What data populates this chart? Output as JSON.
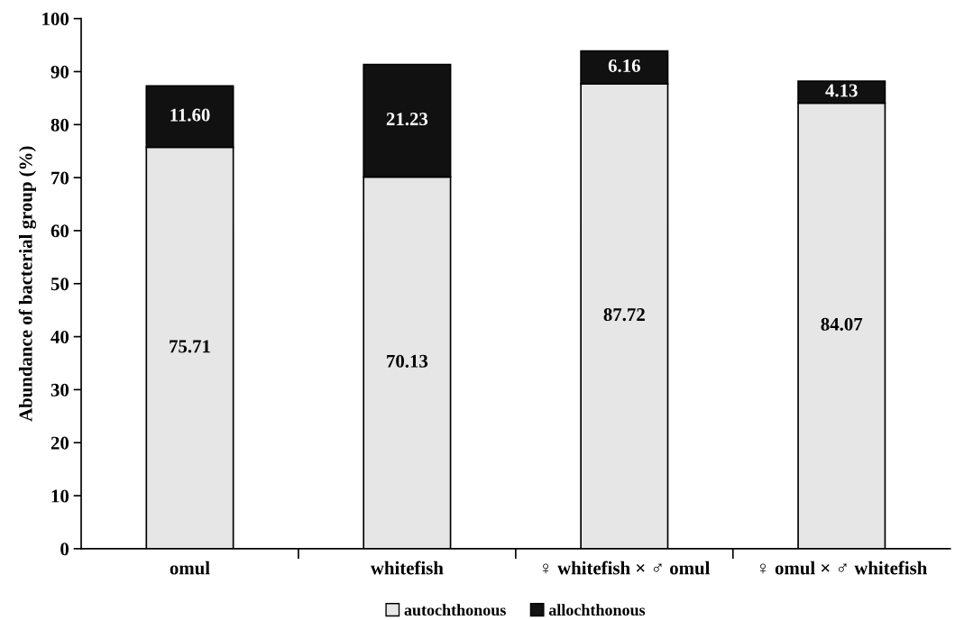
{
  "chart_data": {
    "type": "bar",
    "stacked": true,
    "ylabel": "Abundance of bacterial group (%)",
    "categories": [
      "omul",
      "whitefish",
      "♀ whitefish × ♂ omul",
      "♀ omul × ♂ whitefish"
    ],
    "series": [
      {
        "name": "autochthonous",
        "color": "#e6e6e6",
        "values": [
          75.71,
          70.13,
          87.72,
          84.07
        ]
      },
      {
        "name": "allochthonous",
        "color": "#111111",
        "values": [
          11.6,
          21.23,
          6.16,
          4.13
        ]
      }
    ],
    "value_labels": [
      [
        "75.71",
        "70.13",
        "87.72",
        "84.07"
      ],
      [
        "11.60",
        "21.23",
        "6.16",
        "4.13"
      ]
    ],
    "ylim": [
      0,
      100
    ],
    "yticks": [
      0,
      10,
      20,
      30,
      40,
      50,
      60,
      70,
      80,
      90,
      100
    ],
    "grid": false,
    "legend": "bottom"
  }
}
